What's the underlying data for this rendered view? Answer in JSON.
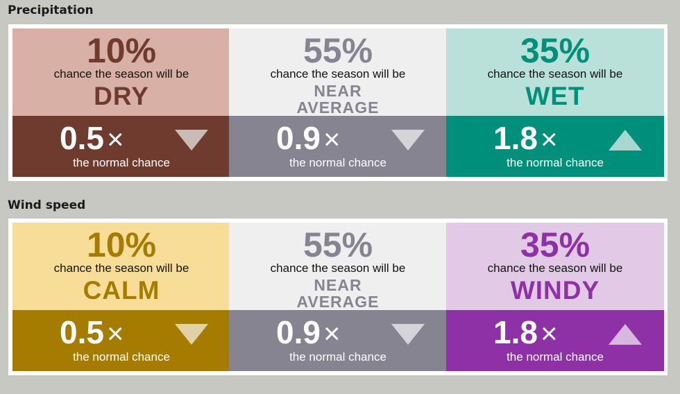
{
  "precipitation": {
    "title": "Precipitation",
    "columns": [
      {
        "percent": "10%",
        "chance_text": "chance the season will be",
        "outcome_line1": "DRY",
        "outcome_line2": "",
        "multiplier": "0.5",
        "times": "×",
        "normal_text": "the normal chance",
        "arrow": "down",
        "colors": {
          "top_bg": "#d9b0a6",
          "bottom_bg": "#6e3b2e",
          "accent": "#6e3b2e"
        }
      },
      {
        "percent": "55%",
        "chance_text": "chance the season will be",
        "outcome_line1": "NEAR",
        "outcome_line2": "AVERAGE",
        "multiplier": "0.9",
        "times": "×",
        "normal_text": "the normal chance",
        "arrow": "down",
        "colors": {
          "top_bg": "#efefef",
          "bottom_bg": "#868491",
          "accent": "#868491"
        }
      },
      {
        "percent": "35%",
        "chance_text": "chance the season will be",
        "outcome_line1": "WET",
        "outcome_line2": "",
        "multiplier": "1.8",
        "times": "×",
        "normal_text": "the normal chance",
        "arrow": "up",
        "colors": {
          "top_bg": "#b9e1da",
          "bottom_bg": "#008f7a",
          "accent": "#008f7a"
        }
      }
    ]
  },
  "wind": {
    "title": "Wind speed",
    "columns": [
      {
        "percent": "10%",
        "chance_text": "chance the season will be",
        "outcome_line1": "CALM",
        "outcome_line2": "",
        "multiplier": "0.5",
        "times": "×",
        "normal_text": "the normal chance",
        "arrow": "down",
        "colors": {
          "top_bg": "#f7dd97",
          "bottom_bg": "#a67c00",
          "accent": "#a67c00"
        }
      },
      {
        "percent": "55%",
        "chance_text": "chance the season will be",
        "outcome_line1": "NEAR",
        "outcome_line2": "AVERAGE",
        "multiplier": "0.9",
        "times": "×",
        "normal_text": "the normal chance",
        "arrow": "down",
        "colors": {
          "top_bg": "#efefef",
          "bottom_bg": "#868491",
          "accent": "#868491"
        }
      },
      {
        "percent": "35%",
        "chance_text": "chance the season will be",
        "outcome_line1": "WINDY",
        "outcome_line2": "",
        "multiplier": "1.8",
        "times": "×",
        "normal_text": "the normal chance",
        "arrow": "up",
        "colors": {
          "top_bg": "#e2c9e6",
          "bottom_bg": "#8e31a6",
          "accent": "#8e31a6"
        }
      }
    ]
  }
}
